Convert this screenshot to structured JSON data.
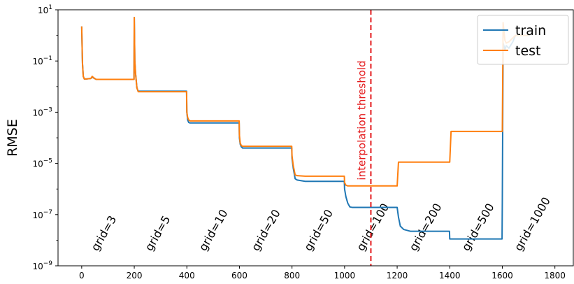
{
  "chart_data": {
    "type": "line",
    "title": "",
    "xlabel": "",
    "ylabel": "RMSE",
    "xlim": [
      -90,
      1870
    ],
    "ylim_log10": [
      -9,
      1
    ],
    "yscale": "log",
    "x_ticks": [
      0,
      200,
      400,
      600,
      800,
      1000,
      1200,
      1400,
      1600,
      1800
    ],
    "y_ticks": [
      {
        "exp": 1,
        "base": "10",
        "sup": "1"
      },
      {
        "exp": -1,
        "base": "10",
        "sup": "−1"
      },
      {
        "exp": -3,
        "base": "10",
        "sup": "−3"
      },
      {
        "exp": -5,
        "base": "10",
        "sup": "−5"
      },
      {
        "exp": -7,
        "base": "10",
        "sup": "−7"
      },
      {
        "exp": -9,
        "base": "10",
        "sup": "−9"
      }
    ],
    "legend_position": "top-right",
    "series": [
      {
        "name": "train",
        "color": "#1f77b4",
        "x": [
          0,
          3,
          6,
          10,
          20,
          35,
          40,
          45,
          55,
          100,
          150,
          199,
          200,
          202,
          205,
          210,
          215,
          300,
          399,
          400,
          403,
          407,
          412,
          500,
          599,
          600,
          603,
          607,
          612,
          630,
          700,
          799,
          800,
          805,
          812,
          820,
          850,
          900,
          999,
          1000,
          1005,
          1012,
          1020,
          1030,
          1050,
          1100,
          1150,
          1199,
          1200,
          1205,
          1212,
          1225,
          1250,
          1300,
          1399,
          1400,
          1405,
          1500,
          1599,
          1600,
          1603,
          1610,
          1615,
          1625,
          1640,
          1650,
          1700
        ],
        "y_log10": [
          0.35,
          -1.1,
          -1.6,
          -1.7,
          -1.7,
          -1.68,
          -1.63,
          -1.66,
          -1.72,
          -1.72,
          -1.72,
          -1.72,
          0.7,
          -1.0,
          -1.5,
          -2.05,
          -2.18,
          -2.18,
          -2.18,
          -3.0,
          -3.3,
          -3.4,
          -3.42,
          -3.42,
          -3.42,
          -4.0,
          -4.25,
          -4.35,
          -4.4,
          -4.4,
          -4.4,
          -4.4,
          -4.8,
          -5.2,
          -5.6,
          -5.65,
          -5.7,
          -5.7,
          -5.7,
          -6.0,
          -6.3,
          -6.55,
          -6.7,
          -6.72,
          -6.72,
          -6.72,
          -6.72,
          -6.72,
          -6.72,
          -7.1,
          -7.45,
          -7.58,
          -7.65,
          -7.65,
          -7.65,
          -7.95,
          -7.95,
          -7.95,
          -7.95,
          -6.5,
          -0.3,
          -0.55,
          -0.4,
          -0.5,
          -0.25,
          0.0,
          0.0
        ]
      },
      {
        "name": "test",
        "color": "#ff7f0e",
        "x": [
          0,
          3,
          6,
          10,
          20,
          35,
          40,
          45,
          55,
          100,
          150,
          199,
          200,
          202,
          205,
          210,
          215,
          300,
          399,
          400,
          403,
          407,
          412,
          500,
          599,
          600,
          603,
          607,
          612,
          630,
          700,
          799,
          800,
          805,
          812,
          820,
          850,
          900,
          999,
          1000,
          1005,
          1012,
          1020,
          1030,
          1050,
          1100,
          1150,
          1199,
          1200,
          1205,
          1300,
          1399,
          1400,
          1405,
          1500,
          1599,
          1600,
          1603,
          1610,
          1615,
          1625,
          1640,
          1650,
          1700
        ],
        "y_log10": [
          0.35,
          -1.1,
          -1.6,
          -1.7,
          -1.7,
          -1.68,
          -1.6,
          -1.65,
          -1.72,
          -1.72,
          -1.72,
          -1.72,
          0.7,
          -1.0,
          -1.5,
          -2.05,
          -2.2,
          -2.2,
          -2.2,
          -3.0,
          -3.2,
          -3.3,
          -3.34,
          -3.34,
          -3.34,
          -3.9,
          -4.2,
          -4.3,
          -4.33,
          -4.33,
          -4.33,
          -4.33,
          -4.7,
          -5.1,
          -5.45,
          -5.48,
          -5.5,
          -5.5,
          -5.5,
          -5.75,
          -5.85,
          -5.88,
          -5.88,
          -5.88,
          -5.88,
          -5.88,
          -5.88,
          -5.88,
          -5.88,
          -4.95,
          -4.95,
          -4.95,
          -4.95,
          -3.75,
          -3.75,
          -3.75,
          -3.75,
          0.5,
          -0.2,
          -0.3,
          -0.25,
          -0.1,
          0.0,
          0.0
        ]
      }
    ],
    "threshold": {
      "x": 1100,
      "label": "interpolation threshold",
      "color": "#e41a1c"
    },
    "annotations": [
      {
        "text": "grid=3",
        "x": 60
      },
      {
        "text": "grid=5",
        "x": 265
      },
      {
        "text": "grid=10",
        "x": 470
      },
      {
        "text": "grid=20",
        "x": 670
      },
      {
        "text": "grid=50",
        "x": 870
      },
      {
        "text": "grid=100",
        "x": 1070
      },
      {
        "text": "grid=200",
        "x": 1270
      },
      {
        "text": "grid=500",
        "x": 1470
      },
      {
        "text": "grid=1000",
        "x": 1670
      }
    ]
  }
}
